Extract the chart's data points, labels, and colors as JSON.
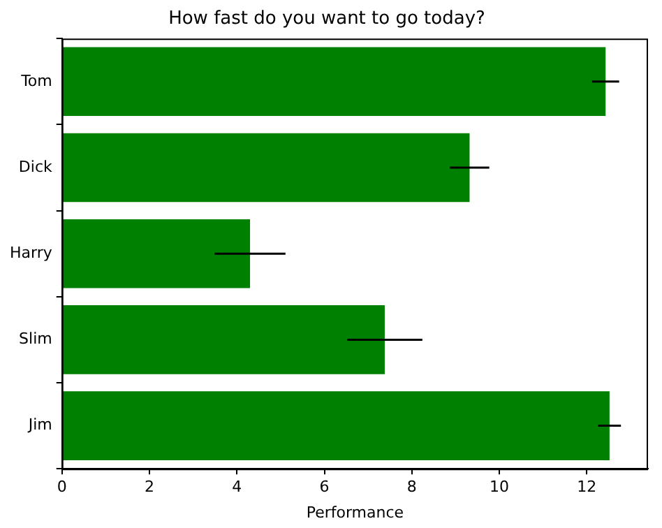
{
  "chart_data": {
    "type": "bar",
    "orientation": "horizontal",
    "title": "How fast do you want to go today?",
    "xlabel": "Performance",
    "categories": [
      "Tom",
      "Dick",
      "Harry",
      "Slim",
      "Jim"
    ],
    "values": [
      12.43,
      9.32,
      4.3,
      7.38,
      12.52
    ],
    "errors": [
      0.31,
      0.45,
      0.81,
      0.86,
      0.26
    ],
    "color": "#008000",
    "xlim": [
      0,
      13.4
    ],
    "xticks": [
      0,
      2,
      4,
      6,
      8,
      10,
      12
    ],
    "grid": false,
    "legend": false
  }
}
